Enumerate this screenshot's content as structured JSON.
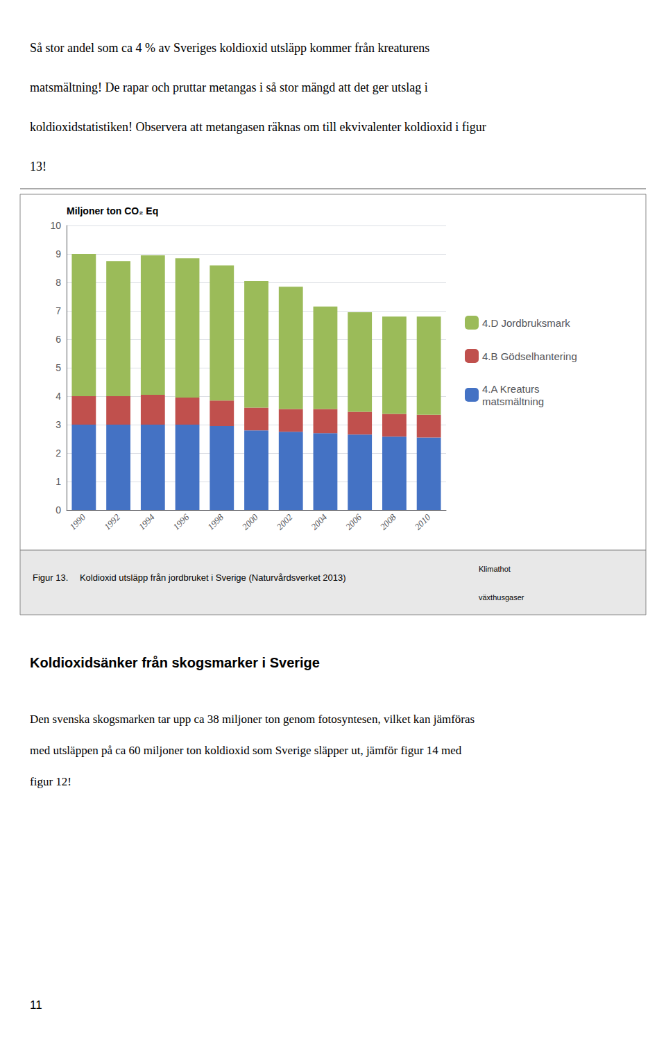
{
  "chart_data": {
    "type": "bar",
    "title": "Miljoner ton CO₂ Eq",
    "categories": [
      "1990",
      "1992",
      "1994",
      "1996",
      "1998",
      "2000",
      "2002",
      "2004",
      "2006",
      "2008",
      "2010"
    ],
    "series": [
      {
        "name": "4.A Kreaturs\nmatsmältning",
        "color": "#4472C4",
        "values": [
          3.0,
          3.0,
          3.0,
          3.0,
          2.95,
          2.8,
          2.75,
          2.7,
          2.65,
          2.58,
          2.55
        ]
      },
      {
        "name": "4.B Gödselhantering",
        "color": "#C0504D",
        "values": [
          1.0,
          1.0,
          1.05,
          0.95,
          0.9,
          0.8,
          0.8,
          0.85,
          0.8,
          0.8,
          0.8
        ]
      },
      {
        "name": "4.D Jordbruksmark",
        "color": "#9BBB59",
        "values": [
          5.0,
          4.75,
          4.9,
          4.9,
          4.75,
          4.45,
          4.3,
          3.6,
          3.5,
          3.42,
          3.45
        ]
      }
    ],
    "stacked": true,
    "ylim": [
      0,
      10
    ],
    "yticks": [
      0,
      1,
      2,
      3,
      4,
      5,
      6,
      7,
      8,
      9,
      10
    ],
    "grid": true,
    "legend": "right",
    "annotations": [
      "Så stor andel som ca 4 % av Sveriges koldioxid utsläpp kommer från kreaturens",
      "matsmältning! De rapar och pruttar metangas i så stor mängd att det ger utslag i",
      "koldioxidstatistiken! Observera att metangasen räknas om till ekvivalenter koldioxid i figur",
      "13!",
      "Figur 13.  Koldioxid utsläpp från jordbruket i Sverige (Naturvårdsverket 2013)",
      "Klimathot",
      "växthusgaser",
      "Koldioxidsänker från skogsmarker i Sverige",
      "Den svenska skogsmarken tar upp ca 38 miljoner ton genom fotosyntesen, vilket kan jämföras",
      "med utsläppen på ca 60 miljoner ton koldioxid som Sverige släpper ut, jämför figur 14 med",
      "figur 12!",
      "11"
    ]
  }
}
